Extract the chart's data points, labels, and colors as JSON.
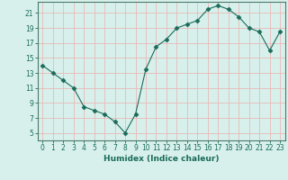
{
  "x": [
    0,
    1,
    2,
    3,
    4,
    5,
    6,
    7,
    8,
    9,
    10,
    11,
    12,
    13,
    14,
    15,
    16,
    17,
    18,
    19,
    20,
    21,
    22,
    23
  ],
  "y": [
    14,
    13,
    12,
    11,
    8.5,
    8,
    7.5,
    6.5,
    5,
    7.5,
    13.5,
    16.5,
    17.5,
    19,
    19.5,
    20,
    21.5,
    22,
    21.5,
    20.5,
    19,
    18.5,
    16,
    18.5
  ],
  "line_color": "#1a6b5a",
  "marker": "D",
  "markersize": 2.5,
  "bg_color": "#d8f0ec",
  "grid_color": "#e8b8b8",
  "axis_color": "#4a7a6a",
  "xlabel": "Humidex (Indice chaleur)",
  "xlim": [
    -0.5,
    23.5
  ],
  "ylim": [
    4,
    22.5
  ],
  "yticks": [
    5,
    7,
    9,
    11,
    13,
    15,
    17,
    19,
    21
  ],
  "xticks": [
    0,
    1,
    2,
    3,
    4,
    5,
    6,
    7,
    8,
    9,
    10,
    11,
    12,
    13,
    14,
    15,
    16,
    17,
    18,
    19,
    20,
    21,
    22,
    23
  ],
  "title_color": "#1a6b5a",
  "font_size_label": 6.5,
  "font_size_tick": 5.5
}
